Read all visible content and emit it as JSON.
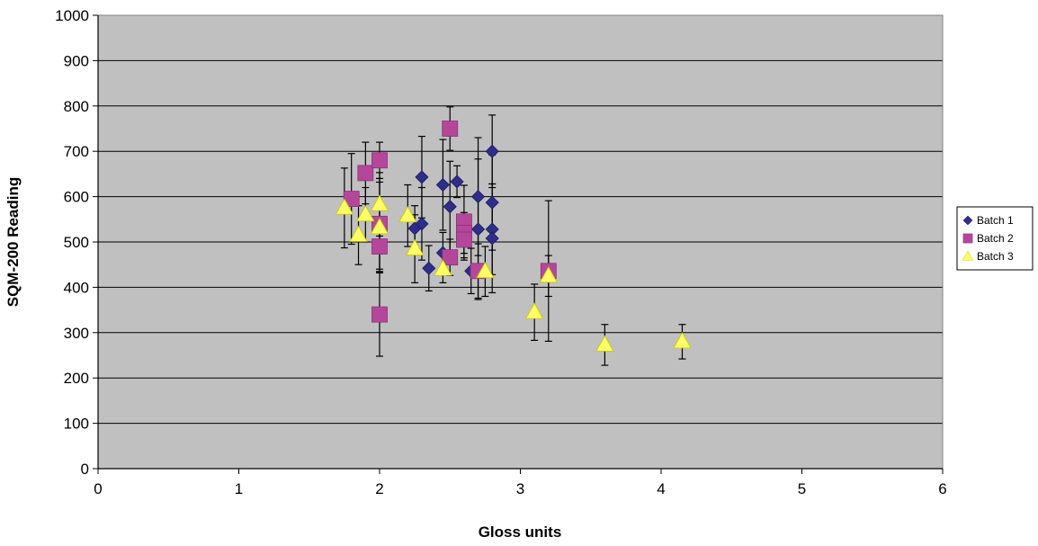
{
  "chart_data": {
    "type": "scatter",
    "title": "",
    "xlabel": "Gloss units",
    "ylabel": "SQM-200 Reading",
    "xlim": [
      0,
      6
    ],
    "ylim": [
      0,
      1000
    ],
    "xticks": [
      "0",
      "1",
      "2",
      "3",
      "4",
      "5",
      "6"
    ],
    "yticks": [
      "0",
      "100",
      "200",
      "300",
      "400",
      "500",
      "600",
      "700",
      "800",
      "900",
      "1000"
    ],
    "grid": "horizontal",
    "error_bars": true,
    "plot_background": "#c0c0c0",
    "legend_position": "right",
    "series": [
      {
        "name": "Batch 1",
        "marker": "diamond",
        "color": "#2e2e8a",
        "points": [
          {
            "x": 2.25,
            "y": 530,
            "err": 50
          },
          {
            "x": 2.3,
            "y": 643,
            "err": 90
          },
          {
            "x": 2.3,
            "y": 540,
            "err": 80
          },
          {
            "x": 2.35,
            "y": 442,
            "err": 50
          },
          {
            "x": 2.45,
            "y": 626,
            "err": 100
          },
          {
            "x": 2.45,
            "y": 476,
            "err": 45
          },
          {
            "x": 2.5,
            "y": 578,
            "err": 100
          },
          {
            "x": 2.55,
            "y": 633,
            "err": 35
          },
          {
            "x": 2.65,
            "y": 436,
            "err": 50
          },
          {
            "x": 2.7,
            "y": 600,
            "err": 130
          },
          {
            "x": 2.7,
            "y": 528,
            "err": 155
          },
          {
            "x": 2.8,
            "y": 700,
            "err": 80
          },
          {
            "x": 2.8,
            "y": 587,
            "err": 105
          },
          {
            "x": 2.8,
            "y": 528,
            "err": 100
          },
          {
            "x": 2.8,
            "y": 508,
            "err": 120
          }
        ]
      },
      {
        "name": "Batch 2",
        "marker": "square",
        "color": "#b5479b",
        "points": [
          {
            "x": 1.8,
            "y": 595,
            "err": 100
          },
          {
            "x": 1.9,
            "y": 652,
            "err": 68
          },
          {
            "x": 2.0,
            "y": 680,
            "err": 40
          },
          {
            "x": 2.0,
            "y": 540,
            "err": 100
          },
          {
            "x": 2.0,
            "y": 490,
            "err": 55
          },
          {
            "x": 2.0,
            "y": 340,
            "err": 92
          },
          {
            "x": 2.5,
            "y": 750,
            "err": 48
          },
          {
            "x": 2.5,
            "y": 466,
            "err": 40
          },
          {
            "x": 2.6,
            "y": 545,
            "err": 80
          },
          {
            "x": 2.6,
            "y": 520,
            "err": 45
          },
          {
            "x": 2.6,
            "y": 505,
            "err": 45
          },
          {
            "x": 2.7,
            "y": 436,
            "err": 60
          },
          {
            "x": 3.2,
            "y": 436,
            "err": 155
          }
        ]
      },
      {
        "name": "Batch 3",
        "marker": "triangle",
        "color": "#ffff66",
        "points": [
          {
            "x": 1.75,
            "y": 575,
            "err": 88
          },
          {
            "x": 1.85,
            "y": 515,
            "err": 65
          },
          {
            "x": 1.9,
            "y": 560,
            "err": 60
          },
          {
            "x": 2.0,
            "y": 583,
            "err": 70
          },
          {
            "x": 2.0,
            "y": 532,
            "err": 100
          },
          {
            "x": 2.2,
            "y": 558,
            "err": 68
          },
          {
            "x": 2.25,
            "y": 485,
            "err": 75
          },
          {
            "x": 2.45,
            "y": 440,
            "err": 30
          },
          {
            "x": 2.75,
            "y": 435,
            "err": 55
          },
          {
            "x": 3.1,
            "y": 345,
            "err": 62
          },
          {
            "x": 3.2,
            "y": 425,
            "err": 45
          },
          {
            "x": 3.6,
            "y": 273,
            "err": 45
          },
          {
            "x": 4.15,
            "y": 280,
            "err": 38
          }
        ]
      }
    ]
  }
}
